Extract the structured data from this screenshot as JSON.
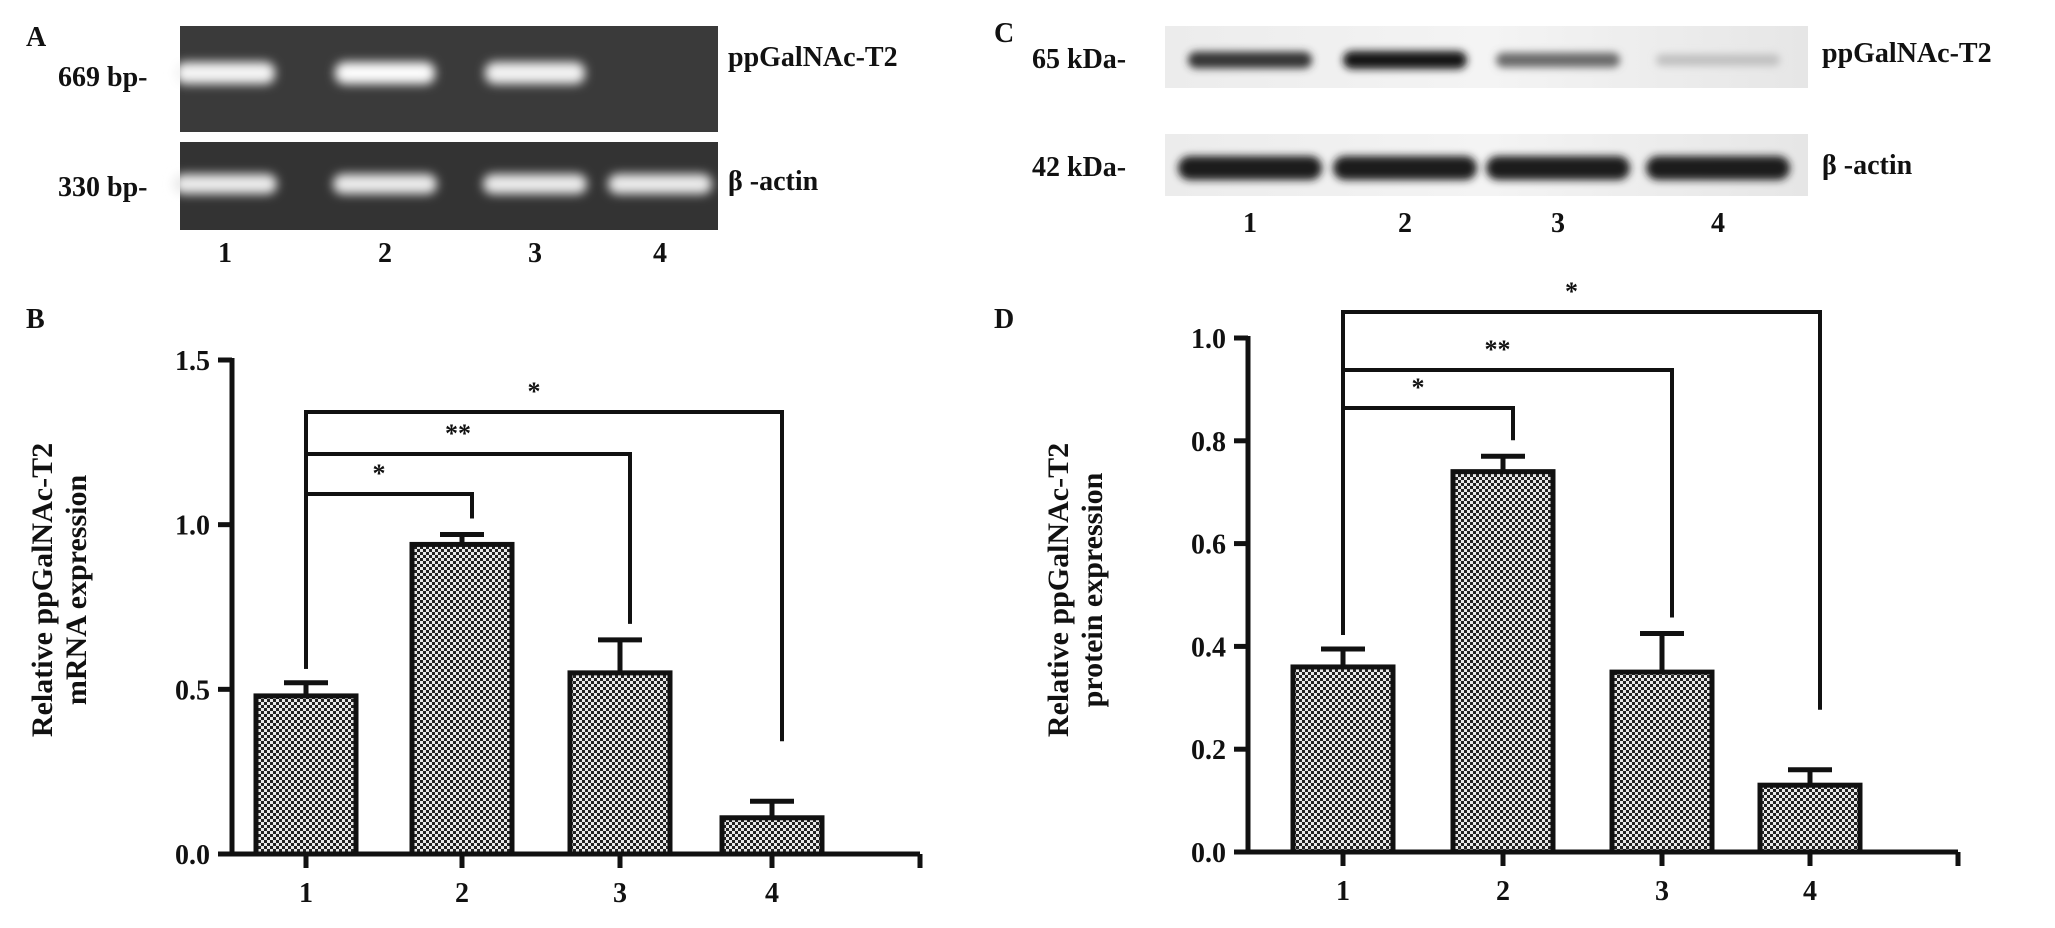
{
  "panels": {
    "A": {
      "letter": "A",
      "top_band_size": "669 bp-",
      "bottom_band_size": "330 bp-",
      "top_label": "ppGalNAc-T2",
      "bottom_label": "β -actin",
      "lanes": [
        "1",
        "2",
        "3",
        "4"
      ],
      "top_band_intensity": [
        0.92,
        0.98,
        0.9,
        0.0
      ],
      "bottom_band_intensity": [
        0.85,
        0.85,
        0.85,
        0.85
      ]
    },
    "C": {
      "letter": "C",
      "top_band_size": "65 kDa-",
      "bottom_band_size": "42 kDa-",
      "top_label": "ppGalNAc-T2",
      "bottom_label": "β -actin",
      "lanes": [
        "1",
        "2",
        "3",
        "4"
      ],
      "top_band_intensity": [
        0.85,
        1.0,
        0.6,
        0.2
      ],
      "bottom_band_intensity": [
        0.95,
        0.95,
        0.95,
        0.95
      ]
    },
    "B": {
      "letter": "B"
    },
    "D": {
      "letter": "D"
    }
  },
  "chart_data": [
    {
      "panel": "B",
      "type": "bar",
      "categories": [
        "1",
        "2",
        "3",
        "4"
      ],
      "values": [
        0.48,
        0.94,
        0.55,
        0.11
      ],
      "errors": [
        0.04,
        0.03,
        0.1,
        0.05
      ],
      "ylabel_line1": "Relative ppGalNAc-T2",
      "ylabel_line2": "mRNA expression",
      "xlabel": "",
      "ylim": [
        0,
        1.5
      ],
      "yticks": [
        "0.0",
        "0.5",
        "1.0",
        "1.5"
      ],
      "grid": false,
      "significance": [
        {
          "from": "1",
          "to": "2",
          "label": "*"
        },
        {
          "from": "1",
          "to": "3",
          "label": "**"
        },
        {
          "from": "1",
          "to": "4",
          "label": "*"
        }
      ]
    },
    {
      "panel": "D",
      "type": "bar",
      "categories": [
        "1",
        "2",
        "3",
        "4"
      ],
      "values": [
        0.36,
        0.74,
        0.35,
        0.13
      ],
      "errors": [
        0.035,
        0.03,
        0.075,
        0.03
      ],
      "ylabel_line1": "Relative ppGalNAc-T2",
      "ylabel_line2": "protein expression",
      "xlabel": "",
      "ylim": [
        0,
        1.0
      ],
      "yticks": [
        "0.0",
        "0.2",
        "0.4",
        "0.6",
        "0.8",
        "1.0"
      ],
      "grid": false,
      "significance": [
        {
          "from": "1",
          "to": "2",
          "label": "*"
        },
        {
          "from": "1",
          "to": "3",
          "label": "**"
        },
        {
          "from": "1",
          "to": "4",
          "label": "*"
        }
      ]
    }
  ]
}
